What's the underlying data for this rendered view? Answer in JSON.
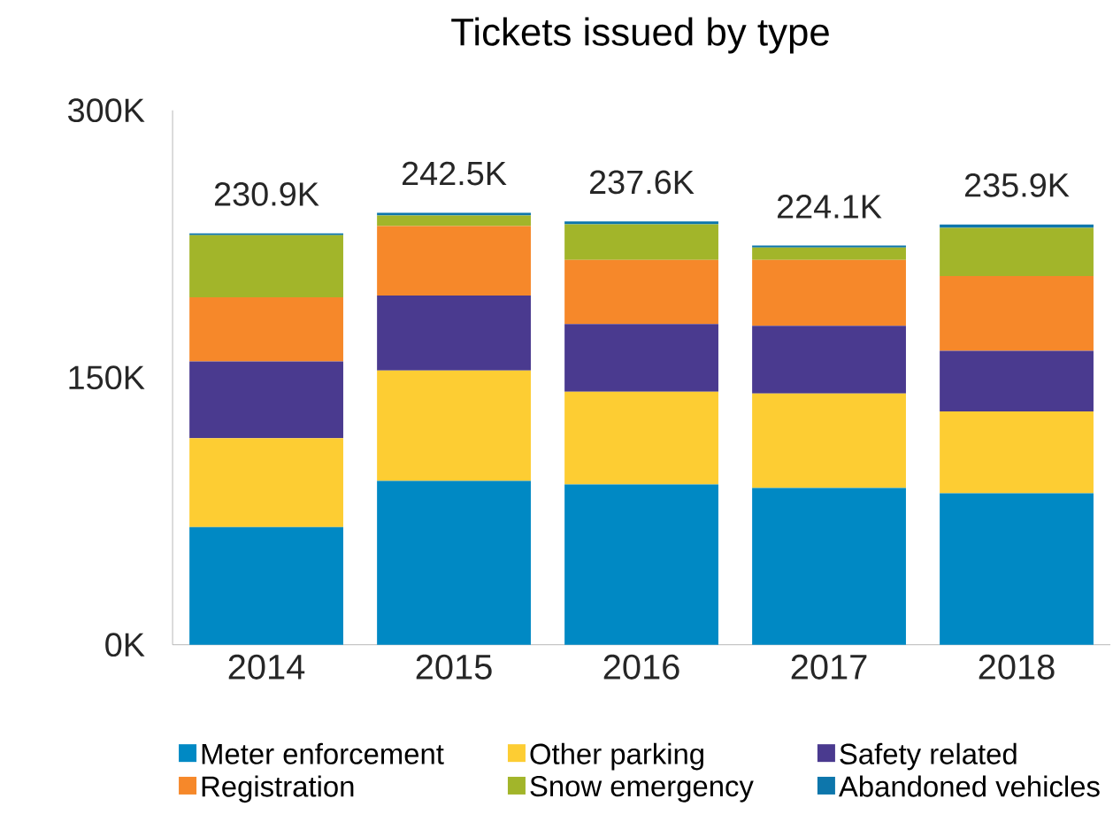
{
  "chart_data": {
    "type": "bar",
    "title": "Tickets issued by type",
    "stacked": true,
    "categories": [
      "2014",
      "2015",
      "2016",
      "2017",
      "2018"
    ],
    "series": [
      {
        "name": "Meter enforcement",
        "color": "#0089c4",
        "values": [
          66,
          92,
          90,
          88,
          85
        ]
      },
      {
        "name": "Other parking",
        "color": "#fdcd33",
        "values": [
          50,
          62,
          52,
          53,
          46
        ]
      },
      {
        "name": "Safety related",
        "color": "#4a3a8f",
        "values": [
          43,
          42,
          38,
          38,
          34
        ]
      },
      {
        "name": "Registration",
        "color": "#f6882a",
        "values": [
          36,
          39,
          36,
          37,
          42
        ]
      },
      {
        "name": "Snow emergency",
        "color": "#a2b52a",
        "values": [
          35,
          6,
          20,
          7,
          27
        ]
      },
      {
        "name": "Abandoned vehicles",
        "color": "#0d76ab",
        "values": [
          0.9,
          1.5,
          1.6,
          1.1,
          1.9
        ]
      }
    ],
    "totals": [
      "230.9K",
      "242.5K",
      "237.6K",
      "224.1K",
      "235.9K"
    ],
    "ylim": [
      0,
      300
    ],
    "yticks": [
      {
        "value": 0,
        "label": "0K"
      },
      {
        "value": 150,
        "label": "150K"
      },
      {
        "value": 300,
        "label": "300K"
      }
    ],
    "grid": false,
    "legend": "bottom"
  }
}
